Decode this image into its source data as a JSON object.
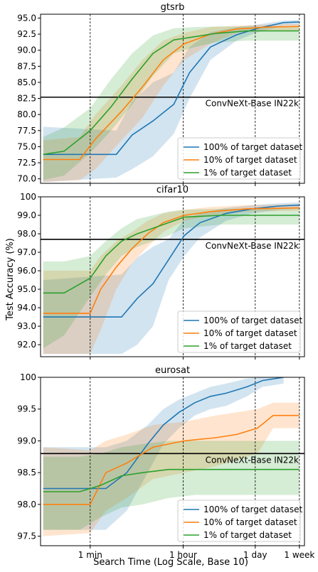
{
  "figure": {
    "xlabel": "Search Time (Log Scale, Base 10)",
    "ylabel": "Test Accuracy (%)",
    "x_ticks": [
      {
        "label": "1 min",
        "log_minutes": 0
      },
      {
        "label": "1 hour",
        "log_minutes": 1.778
      },
      {
        "label": "1 day",
        "log_minutes": 3.158
      },
      {
        "label": "1 week",
        "log_minutes": 4.003
      }
    ],
    "reference_label": "ConvNeXt-Base IN22k",
    "colors": {
      "100": "#1f77b4",
      "10": "#ff7f0e",
      "1": "#2ca02c",
      "reference": "#000000",
      "vline": "#000000"
    }
  },
  "chart_data": [
    {
      "type": "line",
      "title": "gtsrb",
      "x_scale": "log10 (minutes)",
      "xlim": [
        -0.95,
        4.1
      ],
      "ylim": [
        69.3,
        95.6
      ],
      "yticks": [
        "70.0",
        "72.5",
        "75.0",
        "77.5",
        "80.0",
        "82.5",
        "85.0",
        "87.5",
        "90.0",
        "92.5",
        "95.0"
      ],
      "ytick_values": [
        70,
        72.5,
        75,
        77.5,
        80,
        82.5,
        85,
        87.5,
        90,
        92.5,
        95
      ],
      "reference": {
        "name": "ConvNeXt-Base IN22k",
        "y": 82.7
      },
      "legend": "lower-right",
      "series": [
        {
          "name": "100% of target dataset",
          "color": "#1f77b4",
          "x": [
            -0.9,
            0.5,
            0.8,
            1.2,
            1.6,
            1.9,
            2.3,
            2.8,
            3.2,
            3.7,
            4.0
          ],
          "y": [
            73.8,
            73.8,
            76.8,
            79.0,
            81.6,
            86.5,
            90.5,
            92.4,
            93.4,
            94.3,
            94.4
          ],
          "ylow": [
            69.5,
            70.2,
            71.5,
            73.5,
            77.0,
            82.5,
            88.5,
            91.5,
            92.8,
            93.8,
            93.9
          ],
          "yhigh": [
            78.1,
            77.5,
            82.0,
            85.0,
            86.5,
            90.5,
            92.8,
            93.6,
            94.0,
            94.6,
            94.7
          ]
        },
        {
          "name": "10% of target dataset",
          "color": "#ff7f0e",
          "x": [
            -0.9,
            -0.2,
            0.1,
            0.6,
            1.0,
            1.4,
            1.8,
            2.3,
            2.8,
            3.4,
            4.0
          ],
          "y": [
            73.0,
            73.0,
            76.2,
            80.5,
            84.3,
            88.5,
            91.0,
            92.5,
            93.3,
            93.6,
            93.7
          ],
          "ylow": [
            69.5,
            69.8,
            71.5,
            76.0,
            79.5,
            84.5,
            88.5,
            91.0,
            92.7,
            93.0,
            93.1
          ],
          "yhigh": [
            76.0,
            76.5,
            80.0,
            84.5,
            88.5,
            91.5,
            92.7,
            93.6,
            93.8,
            94.0,
            94.1
          ]
        },
        {
          "name": "1% of target dataset",
          "color": "#2ca02c",
          "x": [
            -0.9,
            -0.5,
            0.0,
            0.4,
            0.8,
            1.2,
            1.6,
            2.0,
            2.4,
            3.0,
            4.0
          ],
          "y": [
            73.8,
            74.3,
            77.5,
            81.2,
            85.5,
            89.5,
            91.6,
            92.1,
            92.6,
            93.0,
            93.0
          ],
          "ylow": [
            69.8,
            70.5,
            74.0,
            77.5,
            81.5,
            86.0,
            89.5,
            90.5,
            91.2,
            91.5,
            91.5
          ],
          "yhigh": [
            76.5,
            78.0,
            81.0,
            85.5,
            89.5,
            92.3,
            93.4,
            93.6,
            93.7,
            93.7,
            93.7
          ]
        }
      ]
    },
    {
      "type": "line",
      "title": "cifar10",
      "x_scale": "log10 (minutes)",
      "xlim": [
        -0.95,
        4.1
      ],
      "ylim": [
        91.35,
        100.0
      ],
      "yticks": [
        "92.0",
        "93.0",
        "94.0",
        "95.0",
        "96.0",
        "97.0",
        "98.0",
        "99.0",
        "100"
      ],
      "ytick_values": [
        92,
        93,
        94,
        95,
        96,
        97,
        98,
        99,
        100
      ],
      "reference": {
        "name": "ConvNeXt-Base IN22k",
        "y": 97.7
      },
      "legend": "lower-right",
      "series": [
        {
          "name": "100% of target dataset",
          "color": "#1f77b4",
          "x": [
            -0.9,
            0.6,
            0.9,
            1.2,
            1.5,
            1.8,
            2.1,
            2.6,
            3.1,
            3.6,
            4.0
          ],
          "y": [
            93.5,
            93.5,
            94.5,
            95.3,
            96.6,
            97.9,
            98.6,
            99.1,
            99.35,
            99.5,
            99.55
          ],
          "ylow": [
            91.5,
            91.5,
            92.0,
            93.0,
            95.5,
            96.8,
            97.8,
            98.7,
            99.1,
            99.3,
            99.35
          ],
          "yhigh": [
            95.5,
            95.8,
            96.7,
            97.3,
            97.7,
            98.8,
            99.1,
            99.4,
            99.55,
            99.65,
            99.7
          ]
        },
        {
          "name": "10% of target dataset",
          "color": "#ff7f0e",
          "x": [
            -0.9,
            0.0,
            0.2,
            0.5,
            0.8,
            1.1,
            1.4,
            1.8,
            2.3,
            3.0,
            4.0
          ],
          "y": [
            93.7,
            93.7,
            95.0,
            96.2,
            97.2,
            98.0,
            98.6,
            99.0,
            99.2,
            99.35,
            99.4
          ],
          "ylow": [
            91.5,
            91.5,
            92.8,
            95.0,
            96.4,
            97.3,
            98.1,
            98.7,
            99.0,
            99.2,
            99.25
          ],
          "yhigh": [
            96.0,
            96.0,
            96.8,
            97.6,
            98.1,
            98.7,
            99.1,
            99.3,
            99.45,
            99.55,
            99.6
          ]
        },
        {
          "name": "1% of target dataset",
          "color": "#2ca02c",
          "x": [
            -0.9,
            -0.5,
            0.0,
            0.3,
            0.6,
            0.9,
            1.2,
            1.5,
            1.8,
            2.5,
            4.0
          ],
          "y": [
            94.8,
            94.8,
            95.6,
            96.8,
            97.6,
            98.0,
            98.3,
            98.6,
            98.9,
            99.0,
            99.0
          ],
          "ylow": [
            91.8,
            92.5,
            94.6,
            95.8,
            96.8,
            97.3,
            97.6,
            97.9,
            98.3,
            98.5,
            98.5
          ],
          "yhigh": [
            96.5,
            96.5,
            96.8,
            97.6,
            98.3,
            98.8,
            99.0,
            99.2,
            99.3,
            99.35,
            99.35
          ]
        }
      ]
    },
    {
      "type": "line",
      "title": "eurosat",
      "x_scale": "log10 (minutes)",
      "xlim": [
        -0.95,
        4.1
      ],
      "ylim": [
        97.35,
        100.0
      ],
      "yticks": [
        "97.5",
        "98.0",
        "98.5",
        "99.0",
        "99.5",
        "100"
      ],
      "ytick_values": [
        97.5,
        98.0,
        98.5,
        99.0,
        99.5,
        100.0
      ],
      "reference": {
        "name": "ConvNeXt-Base IN22k",
        "y": 98.8
      },
      "legend": "lower-right",
      "series": [
        {
          "name": "100% of target dataset",
          "color": "#1f77b4",
          "x": [
            -0.9,
            0.3,
            0.7,
            1.1,
            1.4,
            1.7,
            2.0,
            2.3,
            2.6,
            3.0,
            3.3,
            3.7
          ],
          "y": [
            98.25,
            98.25,
            98.5,
            98.95,
            99.25,
            99.45,
            99.6,
            99.7,
            99.75,
            99.85,
            99.95,
            100.0
          ],
          "ylow": [
            97.6,
            97.6,
            97.9,
            98.5,
            98.95,
            99.2,
            99.4,
            99.5,
            99.55,
            99.7,
            99.85,
            99.9
          ],
          "yhigh": [
            98.9,
            98.9,
            99.0,
            99.25,
            99.5,
            99.65,
            99.75,
            99.85,
            99.9,
            99.98,
            100.0,
            100.0
          ]
        },
        {
          "name": "10% of target dataset",
          "color": "#ff7f0e",
          "x": [
            -0.9,
            0.0,
            0.3,
            0.7,
            1.2,
            1.8,
            2.4,
            2.8,
            3.2,
            3.5,
            4.0
          ],
          "y": [
            98.0,
            98.0,
            98.5,
            98.65,
            98.9,
            99.0,
            99.05,
            99.1,
            99.2,
            99.4,
            99.4
          ],
          "ylow": [
            97.5,
            97.55,
            97.9,
            98.1,
            98.4,
            98.5,
            98.6,
            98.7,
            98.8,
            99.2,
            99.2
          ],
          "yhigh": [
            98.9,
            98.85,
            99.0,
            99.1,
            99.25,
            99.3,
            99.4,
            99.45,
            99.5,
            99.6,
            99.6
          ]
        },
        {
          "name": "1% of target dataset",
          "color": "#2ca02c",
          "x": [
            -0.9,
            -0.2,
            0.2,
            0.6,
            1.0,
            1.5,
            2.0,
            4.0
          ],
          "y": [
            98.2,
            98.2,
            98.3,
            98.45,
            98.5,
            98.55,
            98.55,
            98.55
          ],
          "ylow": [
            97.6,
            97.6,
            97.8,
            97.95,
            98.0,
            98.1,
            98.15,
            98.15
          ],
          "yhigh": [
            98.75,
            98.75,
            98.8,
            98.9,
            98.95,
            99.0,
            99.0,
            99.0
          ]
        }
      ]
    }
  ]
}
